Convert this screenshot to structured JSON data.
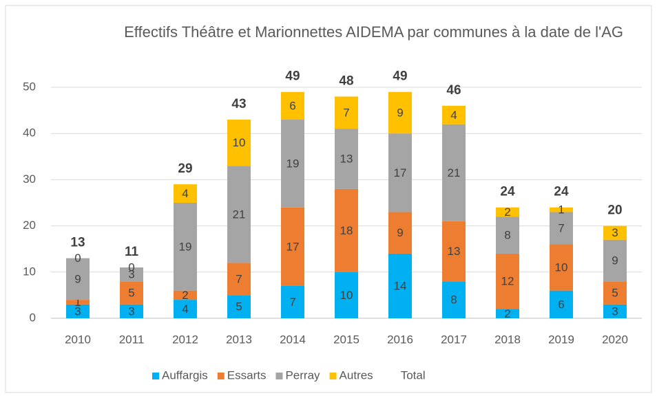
{
  "chart_data": {
    "type": "bar",
    "stacked": true,
    "title": "Effectifs Théâtre et Marionnettes AIDEMA par communes à la date de l'AG",
    "categories": [
      "2010",
      "2011",
      "2012",
      "2013",
      "2014",
      "2015",
      "2016",
      "2017",
      "2018",
      "2019",
      "2020"
    ],
    "series": [
      {
        "name": "Auffargis",
        "color": "#00b0f0",
        "values": [
          3,
          3,
          4,
          5,
          7,
          10,
          14,
          8,
          2,
          6,
          3
        ]
      },
      {
        "name": "Essarts",
        "color": "#ed7d31",
        "values": [
          1,
          5,
          2,
          7,
          17,
          18,
          9,
          13,
          12,
          10,
          5
        ]
      },
      {
        "name": "Perray",
        "color": "#a5a5a5",
        "values": [
          9,
          3,
          19,
          21,
          19,
          13,
          17,
          21,
          8,
          7,
          9
        ]
      },
      {
        "name": "Autres",
        "color": "#ffc000",
        "values": [
          0,
          0,
          4,
          10,
          6,
          7,
          9,
          4,
          2,
          1,
          3
        ]
      },
      {
        "name": "Total",
        "values": [
          13,
          11,
          29,
          43,
          49,
          48,
          49,
          46,
          24,
          24,
          20
        ]
      }
    ],
    "ylim": [
      0,
      50
    ],
    "yticks": [
      0,
      10,
      20,
      30,
      40,
      50
    ],
    "grid": true,
    "legend": "bottom"
  }
}
